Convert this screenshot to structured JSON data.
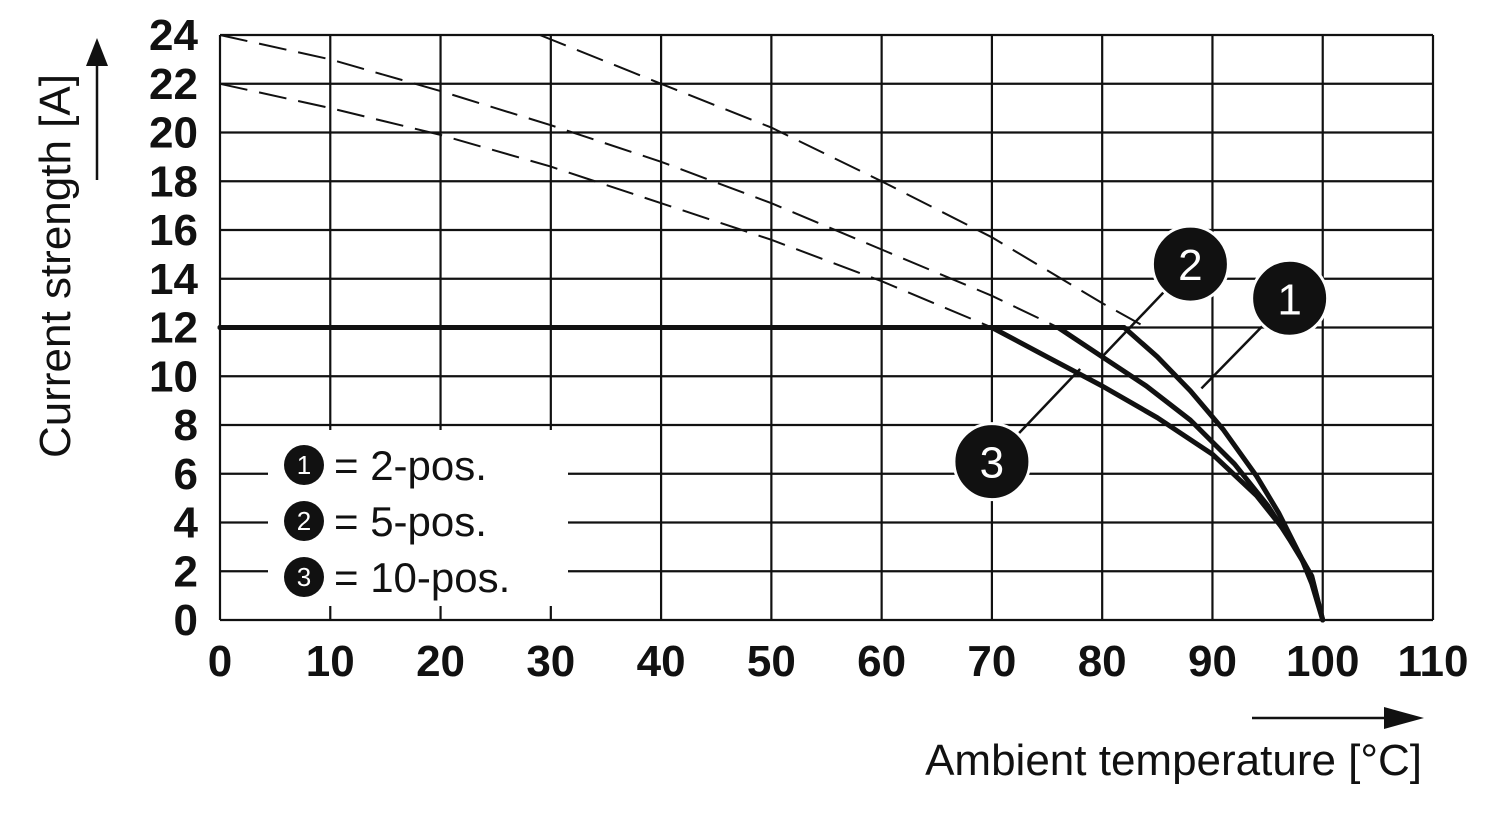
{
  "chart_data": {
    "type": "line",
    "xlabel": "Ambient temperature [°C]",
    "ylabel": "Current strength [A]",
    "xlim": [
      0,
      110
    ],
    "ylim": [
      0,
      24
    ],
    "x_ticks": [
      0,
      10,
      20,
      30,
      40,
      50,
      60,
      70,
      80,
      90,
      100,
      110
    ],
    "y_ticks": [
      0,
      2,
      4,
      6,
      8,
      10,
      12,
      14,
      16,
      18,
      20,
      22,
      24
    ],
    "grid": true,
    "legend": {
      "placement": "lower-left",
      "entries": [
        {
          "marker": "1",
          "label": "= 2-pos."
        },
        {
          "marker": "2",
          "label": "= 5-pos."
        },
        {
          "marker": "3",
          "label": "= 10-pos."
        }
      ]
    },
    "series": [
      {
        "marker": "1",
        "style": "solid",
        "x": [
          0,
          82,
          85,
          88,
          91,
          94,
          96,
          98,
          99,
          100
        ],
        "y": [
          12,
          12,
          10.8,
          9.4,
          7.8,
          5.9,
          4.4,
          2.6,
          1.5,
          0
        ]
      },
      {
        "marker": "2",
        "style": "solid",
        "x": [
          0,
          76,
          80,
          84,
          88,
          92,
          95,
          97,
          99,
          100
        ],
        "y": [
          12,
          12,
          10.8,
          9.6,
          8.2,
          6.4,
          4.7,
          3.3,
          1.8,
          0
        ]
      },
      {
        "marker": "3",
        "style": "solid",
        "x": [
          0,
          70,
          75,
          80,
          85,
          90,
          94,
          97,
          99,
          100
        ],
        "y": [
          12,
          12,
          10.8,
          9.6,
          8.3,
          6.8,
          5.1,
          3.4,
          1.8,
          0
        ]
      },
      {
        "marker": "1",
        "style": "dashed",
        "x": [
          29,
          40,
          50,
          60,
          70,
          80,
          84
        ],
        "y": [
          24,
          22,
          20.2,
          18,
          15.7,
          13,
          12
        ]
      },
      {
        "marker": "2",
        "style": "dashed",
        "x": [
          0,
          10,
          20,
          30,
          40,
          50,
          60,
          70,
          76
        ],
        "y": [
          24,
          23,
          21.7,
          20.3,
          18.8,
          17.1,
          15.2,
          13.3,
          12
        ]
      },
      {
        "marker": "3",
        "style": "dashed",
        "x": [
          0,
          10,
          20,
          30,
          40,
          50,
          60,
          70
        ],
        "y": [
          22,
          21,
          19.9,
          18.6,
          17.1,
          15.6,
          13.9,
          12
        ]
      }
    ],
    "markers": [
      {
        "label": "1",
        "x": 97,
        "y": 13.2,
        "leader_to": {
          "x": 89,
          "y": 9.5
        }
      },
      {
        "label": "2",
        "x": 88,
        "y": 14.6,
        "leader_to": {
          "x": 80,
          "y": 10.8
        }
      },
      {
        "label": "3",
        "x": 70,
        "y": 6.5,
        "leader_to": {
          "x": 78,
          "y": 10.3
        }
      }
    ]
  }
}
